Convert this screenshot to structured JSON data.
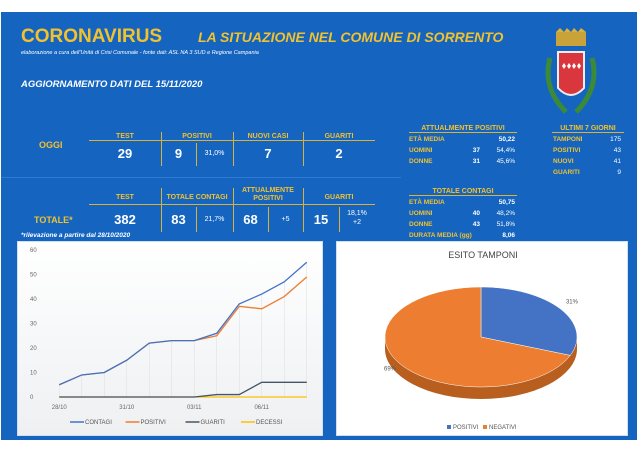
{
  "header": {
    "title": "CORONAVIRUS",
    "subtitle": "LA SITUAZIONE NEL COMUNE DI SORRENTO",
    "credits": "elaborazione a cura dell'Unità di Crisi Comunale - fonte dati: ASL NA 3 SUD e Regione Campania",
    "update": "AGGIORNAMENTO DATI DEL 15/11/2020"
  },
  "oggi": {
    "label": "OGGI",
    "h_test": "TEST",
    "h_positivi": "POSITIVI",
    "h_nuovi": "NUOVI CASI",
    "h_guariti": "GUARITI",
    "test": "29",
    "positivi": "9",
    "positivi_pct": "31,0%",
    "nuovi": "7",
    "guariti": "2"
  },
  "totale": {
    "label": "TOTALE*",
    "h_test": "TEST",
    "h_contagi": "TOTALE CONTAGI",
    "h_attuali": "ATTUALMENTE POSITIVI",
    "h_guariti": "GUARITI",
    "test": "382",
    "contagi": "83",
    "contagi_pct": "21,7%",
    "attuali": "68",
    "attuali_delta": "+5",
    "guariti": "15",
    "guariti_pct": "18,1%",
    "guariti_delta": "+2",
    "note": "*rilevazione a partire dal 28/10/2020"
  },
  "attuali": {
    "title": "ATTUALMENTE POSITIVI",
    "eta_label": "ETÀ MEDIA",
    "eta": "50,22",
    "uomini_label": "UOMINI",
    "uomini": "37",
    "uomini_pct": "54,4%",
    "donne_label": "DONNE",
    "donne": "31",
    "donne_pct": "45,6%"
  },
  "contagi": {
    "title": "TOTALE CONTAGI",
    "eta_label": "ETÀ MEDIA",
    "eta": "50,75",
    "uomini_label": "UOMINI",
    "uomini": "40",
    "uomini_pct": "48,2%",
    "donne_label": "DONNE",
    "donne": "43",
    "donne_pct": "51,8%",
    "durata_label": "DURATA MEDIA (gg)",
    "durata": "8,06"
  },
  "ultimi": {
    "title": "ULTIMI 7 GIORNI",
    "tamponi_label": "TAMPONI",
    "tamponi": "175",
    "positivi_label": "POSITIVI",
    "positivi": "43",
    "nuovi_label": "NUOVI",
    "nuovi": "41",
    "guariti_label": "GUARITI",
    "guariti": "9"
  },
  "colors": {
    "contagi": "#4472c4",
    "positivi": "#ed7d31",
    "guariti": "#44546a",
    "decessi": "#ffc000",
    "panel": "#1565c0"
  },
  "chart_data": [
    {
      "type": "line",
      "title": "",
      "x": [
        "28/10",
        "29/10",
        "30/10",
        "31/10",
        "01/11",
        "02/11",
        "03/11",
        "04/11",
        "05/11",
        "06/11",
        "07/11",
        "08/11"
      ],
      "tick_labels": [
        "28/10",
        "31/10",
        "03/11",
        "06/11"
      ],
      "ylim": [
        0,
        60
      ],
      "yticks": [
        0,
        10,
        20,
        30,
        40,
        50,
        60
      ],
      "legend": "bottom",
      "series": [
        {
          "name": "CONTAGI",
          "values": [
            5,
            9,
            10,
            15,
            22,
            23,
            23,
            26,
            38,
            42,
            47,
            55
          ]
        },
        {
          "name": "POSITIVI",
          "values": [
            5,
            9,
            10,
            15,
            22,
            23,
            23,
            25,
            37,
            36,
            41,
            49
          ]
        },
        {
          "name": "GUARITI",
          "values": [
            0,
            0,
            0,
            0,
            0,
            0,
            0,
            1,
            1,
            6,
            6,
            6
          ]
        },
        {
          "name": "DECESSI",
          "values": [
            0,
            0,
            0,
            0,
            0,
            0,
            0,
            0,
            0,
            0,
            0,
            0
          ]
        }
      ]
    },
    {
      "type": "pie",
      "title": "ESITO TAMPONI",
      "categories": [
        "POSITIVI",
        "NEGATIVI"
      ],
      "values": [
        31,
        69
      ],
      "labels": [
        "31%",
        "69%"
      ],
      "legend": "bottom"
    }
  ]
}
